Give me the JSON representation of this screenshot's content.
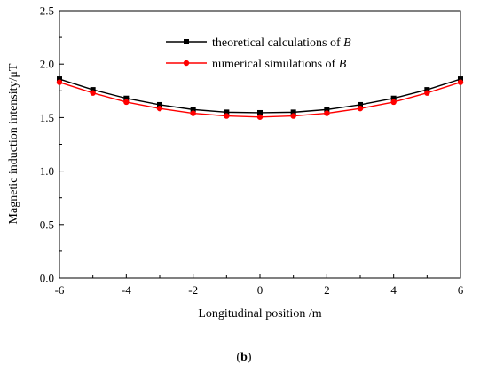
{
  "chart_data": {
    "type": "line",
    "xlabel": "Longitudinal position /m",
    "ylabel": "Magnetic induction intensity/μT",
    "xlim": [
      -6,
      6
    ],
    "ylim": [
      0.0,
      2.5
    ],
    "xticks": [
      "-6",
      "-4",
      "-2",
      "0",
      "2",
      "4",
      "6"
    ],
    "xtick_values": [
      -6,
      -4,
      -2,
      0,
      2,
      4,
      6
    ],
    "yticks": [
      "0.0",
      "0.5",
      "1.0",
      "1.5",
      "2.0",
      "2.5"
    ],
    "ytick_values": [
      0.0,
      0.5,
      1.0,
      1.5,
      2.0,
      2.5
    ],
    "grid": false,
    "legend_position": "top-right",
    "x": [
      -6,
      -5,
      -4,
      -3,
      -2,
      -1,
      0,
      1,
      2,
      3,
      4,
      5,
      6
    ],
    "series": [
      {
        "name": "theoretical calculations of B",
        "color": "#000000",
        "marker": "square",
        "values": [
          1.86,
          1.76,
          1.68,
          1.62,
          1.575,
          1.55,
          1.545,
          1.55,
          1.575,
          1.62,
          1.68,
          1.76,
          1.86
        ]
      },
      {
        "name": "numerical simulations of B",
        "color": "#ff0000",
        "marker": "circle",
        "values": [
          1.83,
          1.73,
          1.645,
          1.585,
          1.54,
          1.515,
          1.505,
          1.515,
          1.54,
          1.585,
          1.645,
          1.73,
          1.83
        ]
      }
    ],
    "legend": [
      {
        "prefix": "theoretical calculations of ",
        "var": "B"
      },
      {
        "prefix": "numerical simulations of ",
        "var": "B"
      }
    ],
    "subfigure_label": {
      "open": "(",
      "letter": "b",
      "close": ")"
    }
  }
}
